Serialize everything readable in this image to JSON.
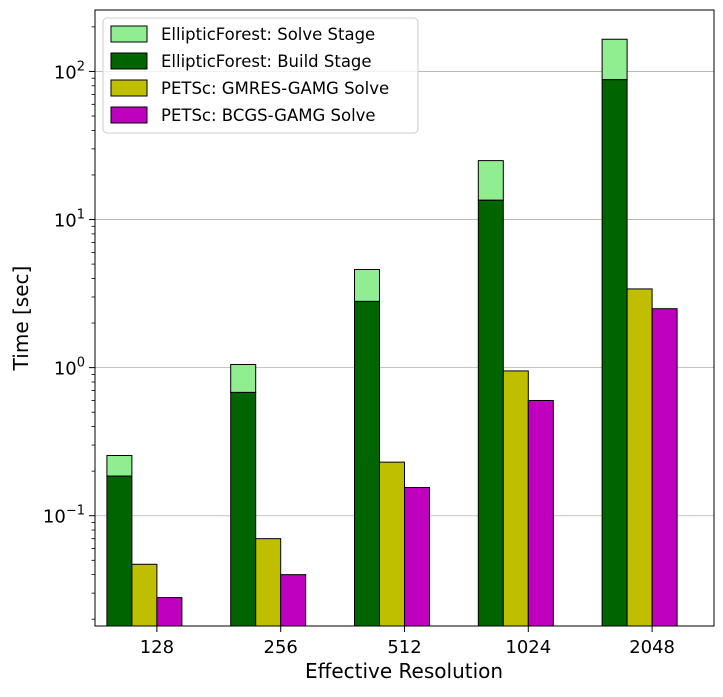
{
  "chart_data": {
    "type": "bar",
    "xlabel": "Effective Resolution",
    "ylabel": "Time [sec]",
    "yscale": "log",
    "ylim": [
      0.018,
      260
    ],
    "grid": "y-major",
    "legend_position": "top-left",
    "categories": [
      "128",
      "256",
      "512",
      "1024",
      "2048"
    ],
    "y_ticks": [
      {
        "value": 0.1,
        "base": "10",
        "exp": "−1"
      },
      {
        "value": 1,
        "base": "10",
        "exp": "0"
      },
      {
        "value": 10,
        "base": "10",
        "exp": "1"
      },
      {
        "value": 100,
        "base": "10",
        "exp": "2"
      }
    ],
    "stacked_series": [
      {
        "name": "EllipticForest: Build Stage",
        "color": "#006400",
        "values": [
          0.185,
          0.68,
          2.8,
          13.5,
          88
        ]
      },
      {
        "name": "EllipticForest: Solve Stage",
        "color": "#90ee90",
        "values": [
          0.07,
          0.37,
          1.8,
          11.5,
          77
        ]
      }
    ],
    "series": [
      {
        "name": "PETSc: GMRES-GAMG Solve",
        "color": "#bfbf00",
        "values": [
          0.047,
          0.07,
          0.23,
          0.95,
          3.4
        ]
      },
      {
        "name": "PETSc: BCGS-GAMG Solve",
        "color": "#bf00bf",
        "values": [
          0.028,
          0.04,
          0.155,
          0.6,
          2.5
        ]
      }
    ],
    "legend": [
      {
        "name": "EllipticForest: Solve Stage",
        "color": "#90ee90"
      },
      {
        "name": "EllipticForest: Build Stage",
        "color": "#006400"
      },
      {
        "name": "PETSc: GMRES-GAMG Solve",
        "color": "#bfbf00"
      },
      {
        "name": "PETSc: BCGS-GAMG Solve",
        "color": "#bf00bf"
      }
    ]
  }
}
